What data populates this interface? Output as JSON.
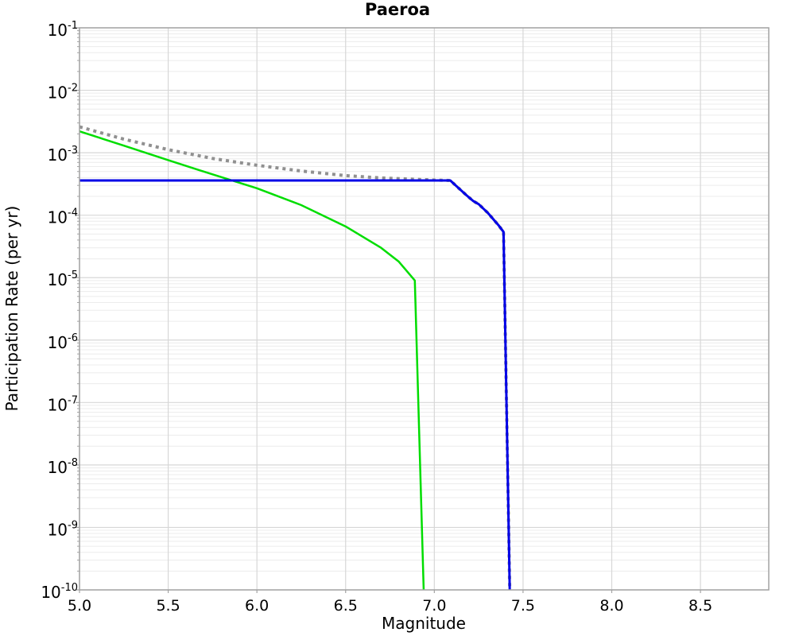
{
  "chart_data": {
    "type": "line",
    "title": "Paeroa",
    "xlabel": "Magnitude",
    "ylabel": "Participation Rate (per yr)",
    "xlim": [
      5.0,
      8.885
    ],
    "ylim": [
      1e-10,
      0.1
    ],
    "x_ticks": [
      5.0,
      5.5,
      6.0,
      6.5,
      7.0,
      7.5,
      8.0,
      8.5
    ],
    "y_tick_exponents": [
      -1,
      -2,
      -3,
      -4,
      -5,
      -6,
      -7,
      -8,
      -9,
      -10
    ],
    "grid": {
      "major_color": "#d7d7d7",
      "minor_color": "#ececec",
      "frame_color": "#a3a3a3",
      "background": "#ffffff"
    },
    "legend": "none",
    "series": [
      {
        "name": "total-rate-dotted",
        "color": "#909090",
        "style": "dotted",
        "width": 4,
        "dash": [
          4,
          5
        ],
        "points": [
          [
            5.0,
            0.0026
          ],
          [
            5.25,
            0.00165
          ],
          [
            5.5,
            0.00112
          ],
          [
            5.75,
            0.00081
          ],
          [
            6.0,
            0.00063
          ],
          [
            6.25,
            0.00051
          ],
          [
            6.5,
            0.00043
          ],
          [
            6.7,
            0.000395
          ],
          [
            6.85,
            0.00038
          ],
          [
            7.0,
            0.000365
          ],
          [
            7.09,
            0.00036
          ],
          [
            7.12,
            0.0003
          ],
          [
            7.18,
            0.00021
          ],
          [
            7.22,
            0.000168
          ],
          [
            7.25,
            0.00015
          ],
          [
            7.3,
            0.00011
          ],
          [
            7.36,
            7e-05
          ],
          [
            7.39,
            5.4e-05
          ],
          [
            7.425,
            1e-10
          ]
        ]
      },
      {
        "name": "gutenberg-richter-green",
        "color": "#00dd00",
        "style": "solid",
        "width": 2.5,
        "dash": null,
        "points": [
          [
            5.0,
            0.0022
          ],
          [
            5.25,
            0.0013
          ],
          [
            5.5,
            0.00076
          ],
          [
            5.75,
            0.00045
          ],
          [
            6.0,
            0.00027
          ],
          [
            6.25,
            0.000145
          ],
          [
            6.5,
            6.6e-05
          ],
          [
            6.7,
            3e-05
          ],
          [
            6.8,
            1.8e-05
          ],
          [
            6.89,
            9e-06
          ],
          [
            6.94,
            1e-10
          ]
        ]
      },
      {
        "name": "characteristic-blue",
        "color": "#0000e6",
        "style": "solid",
        "width": 3,
        "dash": null,
        "points": [
          [
            5.0,
            0.00036
          ],
          [
            7.09,
            0.00036
          ],
          [
            7.12,
            0.0003
          ],
          [
            7.18,
            0.00021
          ],
          [
            7.22,
            0.000168
          ],
          [
            7.25,
            0.00015
          ],
          [
            7.3,
            0.00011
          ],
          [
            7.36,
            7e-05
          ],
          [
            7.39,
            5.4e-05
          ],
          [
            7.425,
            1e-10
          ]
        ]
      }
    ]
  }
}
